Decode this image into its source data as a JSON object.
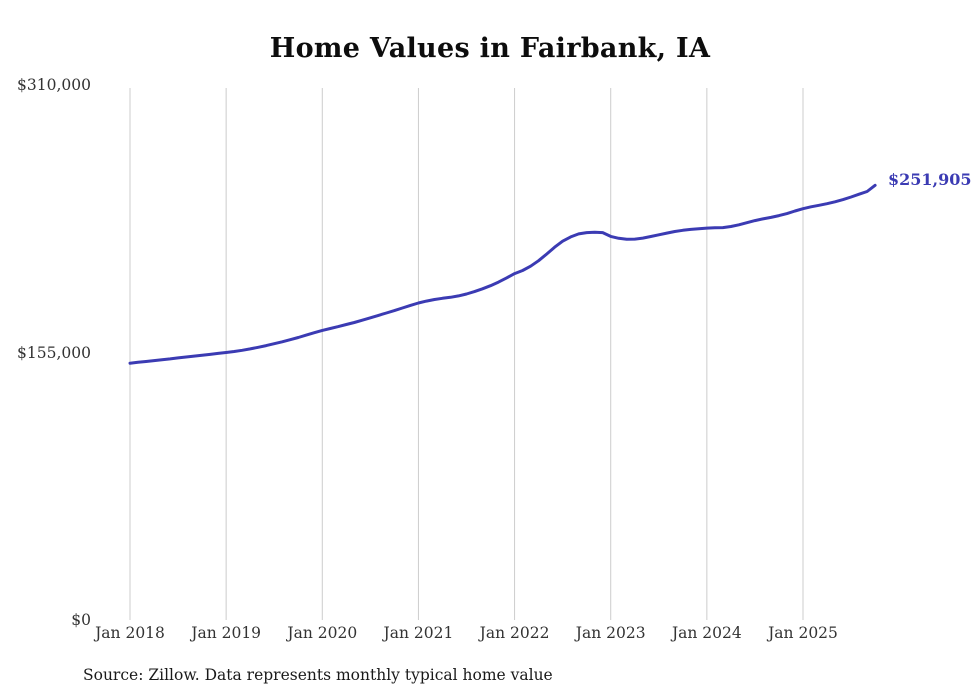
{
  "title": "Home Values in Fairbank, IA",
  "source": "Source: Zillow. Data represents monthly typical home value",
  "colors": {
    "line": "#3b3bb3",
    "grid": "#cccccc",
    "axis_text": "#333333",
    "title_text": "#0d0d0d"
  },
  "chart_data": {
    "type": "line",
    "title": "Home Values in Fairbank, IA",
    "xlabel": "",
    "ylabel": "",
    "ylim": [
      0,
      310000
    ],
    "grid": "vertical-only",
    "legend": "none",
    "y_ticks": [
      {
        "label": "$0",
        "value": 0
      },
      {
        "label": "$155,000",
        "value": 155000
      },
      {
        "label": "$310,000",
        "value": 310000
      }
    ],
    "x_tick_labels": [
      "Jan 2018",
      "Jan 2019",
      "Jan 2020",
      "Jan 2021",
      "Jan 2022",
      "Jan 2023",
      "Jan 2024",
      "Jan 2025"
    ],
    "x_start": "Jan 2018",
    "x_end": "Oct 2025",
    "x_interval": "month",
    "annotation": {
      "text": "$251,905",
      "position": "end-of-line"
    },
    "series": [
      {
        "name": "Typical home value",
        "values": [
          148800,
          149300,
          149800,
          150300,
          150800,
          151300,
          151900,
          152400,
          152900,
          153400,
          153900,
          154500,
          155000,
          155600,
          156300,
          157100,
          158000,
          159000,
          160100,
          161200,
          162400,
          163700,
          165100,
          166500,
          167800,
          168900,
          170000,
          171200,
          172400,
          173700,
          175100,
          176500,
          177900,
          179300,
          180800,
          182300,
          183700,
          184800,
          185700,
          186400,
          187000,
          187800,
          188900,
          190300,
          191900,
          193700,
          195800,
          198200,
          200700,
          202500,
          205000,
          208200,
          212000,
          216000,
          219500,
          222000,
          223700,
          224500,
          224700,
          224500,
          222300,
          221200,
          220600,
          220700,
          221300,
          222200,
          223200,
          224200,
          225100,
          225800,
          226300,
          226700,
          227100,
          227300,
          227400,
          228000,
          229000,
          230200,
          231400,
          232400,
          233300,
          234300,
          235500,
          237000,
          238300,
          239400,
          240300,
          241200,
          242300,
          243600,
          245100,
          246700,
          248300,
          251905
        ]
      }
    ]
  }
}
